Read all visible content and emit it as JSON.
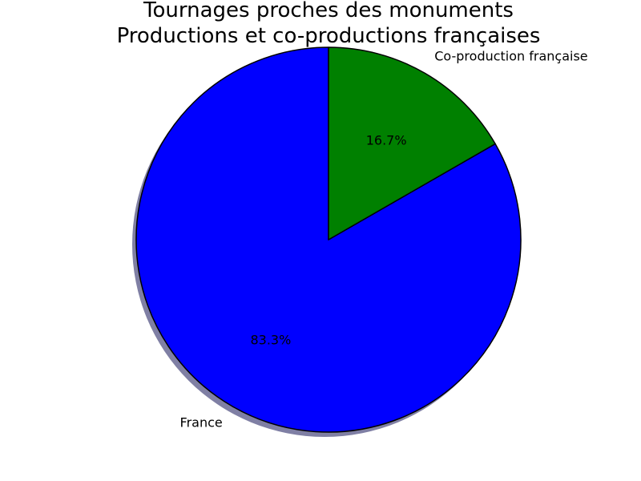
{
  "chart_data": {
    "type": "pie",
    "title_lines": [
      "Tournages proches des monuments",
      "Productions et co-productions françaises"
    ],
    "start_angle_deg": 90,
    "direction": "counterclockwise",
    "shadow": true,
    "slices": [
      {
        "label": "France",
        "value": 83.3,
        "pct_label": "83.3%",
        "color": "#0000ff"
      },
      {
        "label": "Co-production française",
        "value": 16.7,
        "pct_label": "16.7%",
        "color": "#008000"
      }
    ],
    "edge_color": "#000000",
    "shadow_color": "#7f7fa4"
  }
}
